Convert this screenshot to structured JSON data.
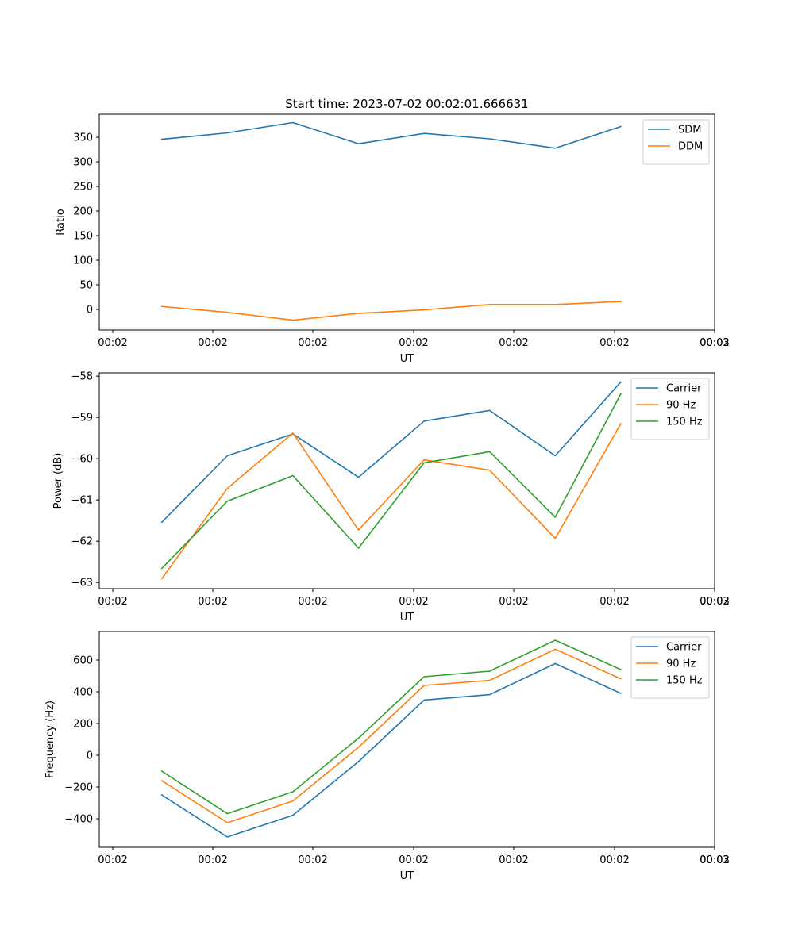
{
  "figure_title": "Start time: 2023-07-02 00:02:01.666631",
  "colors": {
    "c0": "#1f77b4",
    "c1": "#ff7f0e",
    "c2": "#2ca02c"
  },
  "chart_data": [
    {
      "type": "line",
      "title": "Start time: 2023-07-02 00:02:01.666631",
      "xlabel": "UT",
      "ylabel": "Ratio",
      "x_tick_labels": [
        "00:02",
        "00:02",
        "00:02",
        "00:02",
        "00:02",
        "00:02",
        "00:02",
        "00:03"
      ],
      "y_ticks": [
        0,
        50,
        100,
        150,
        200,
        250,
        300,
        350
      ],
      "ylim": [
        -42,
        397
      ],
      "legend": "top-right",
      "series": [
        {
          "name": "SDM",
          "color": "#1f77b4",
          "values": [
            346,
            359,
            380,
            337,
            358,
            347,
            328,
            372
          ]
        },
        {
          "name": "DDM",
          "color": "#ff7f0e",
          "values": [
            6,
            -6,
            -22,
            -8,
            -1,
            10,
            10,
            16
          ]
        }
      ]
    },
    {
      "type": "line",
      "title": "",
      "xlabel": "UT",
      "ylabel": "Power (dB)",
      "x_tick_labels": [
        "00:02",
        "00:02",
        "00:02",
        "00:02",
        "00:02",
        "00:02",
        "00:02",
        "00:03"
      ],
      "y_ticks": [
        -63,
        -62,
        -61,
        -60,
        -59,
        -58
      ],
      "ylim": [
        -63.15,
        -57.92
      ],
      "legend": "top-right",
      "series": [
        {
          "name": "Carrier",
          "color": "#1f77b4",
          "values": [
            -61.54,
            -59.93,
            -59.4,
            -60.45,
            -59.09,
            -58.83,
            -59.93,
            -58.14
          ]
        },
        {
          "name": "90 Hz",
          "color": "#ff7f0e",
          "values": [
            -62.91,
            -60.72,
            -59.38,
            -61.73,
            -60.03,
            -60.28,
            -61.93,
            -59.15
          ]
        },
        {
          "name": "150 Hz",
          "color": "#2ca02c",
          "values": [
            -62.66,
            -61.03,
            -60.41,
            -62.17,
            -60.1,
            -59.83,
            -61.42,
            -58.43
          ]
        }
      ]
    },
    {
      "type": "line",
      "title": "",
      "xlabel": "UT",
      "ylabel": "Frequency (Hz)",
      "x_tick_labels": [
        "00:02",
        "00:02",
        "00:02",
        "00:02",
        "00:02",
        "00:02",
        "00:02",
        "00:03"
      ],
      "y_ticks": [
        -400,
        -200,
        0,
        200,
        400,
        600
      ],
      "ylim": [
        -580,
        780
      ],
      "legend": "top-right",
      "series": [
        {
          "name": "Carrier",
          "color": "#1f77b4",
          "values": [
            -250,
            -515,
            -378,
            -40,
            348,
            382,
            578,
            390
          ]
        },
        {
          "name": "90 Hz",
          "color": "#ff7f0e",
          "values": [
            -160,
            -425,
            -288,
            50,
            440,
            472,
            668,
            482
          ]
        },
        {
          "name": "150 Hz",
          "color": "#2ca02c",
          "values": [
            -100,
            -368,
            -230,
            108,
            495,
            530,
            725,
            540
          ]
        }
      ]
    }
  ]
}
